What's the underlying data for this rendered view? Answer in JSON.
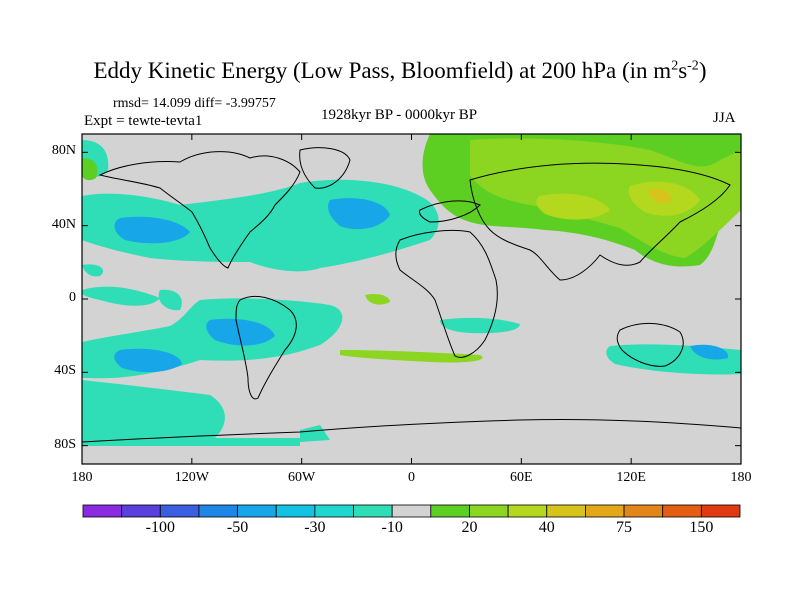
{
  "title": {
    "main": "Eddy Kinetic Energy (Low Pass, Bloomfield) at 200 hPa (in m",
    "sup1": "2",
    "mid": "s",
    "sup2": "-2",
    "end": ")"
  },
  "stats": "rmsd= 14.099 diff= -3.99757",
  "expt": "Expt = tewte-tevta1",
  "period": "1928kyr BP - 0000kyr BP",
  "season": "JJA",
  "map": {
    "lon_range": [
      -180,
      180
    ],
    "lat_range": [
      -90,
      90
    ],
    "lat_ticks": [
      {
        "value": 80,
        "label": "80N"
      },
      {
        "value": 40,
        "label": "40N"
      },
      {
        "value": 0,
        "label": "0"
      },
      {
        "value": -40,
        "label": "40S"
      },
      {
        "value": -80,
        "label": "80S"
      }
    ],
    "lon_ticks": [
      {
        "value": -180,
        "label": "180"
      },
      {
        "value": -120,
        "label": "120W"
      },
      {
        "value": -60,
        "label": "60W"
      },
      {
        "value": 0,
        "label": "0"
      },
      {
        "value": 60,
        "label": "60E"
      },
      {
        "value": 120,
        "label": "120E"
      },
      {
        "value": 180,
        "label": "180"
      }
    ],
    "background_color": "#d3d3d3"
  },
  "colorbar": {
    "colors": [
      "#8a2be2",
      "#5b3fdc",
      "#3a5fe0",
      "#1e86e6",
      "#17a7e8",
      "#14c3e3",
      "#20d6d0",
      "#2fdeb6",
      "#d3d3d3",
      "#5ccf22",
      "#8cd622",
      "#b4d81e",
      "#d6c41a",
      "#e2a81a",
      "#e2861a",
      "#e35e14",
      "#e23a10"
    ],
    "labels": [
      {
        "text": "-100",
        "index": 2
      },
      {
        "text": "-50",
        "index": 4
      },
      {
        "text": "-30",
        "index": 6
      },
      {
        "text": "-10",
        "index": 8
      },
      {
        "text": "20",
        "index": 10
      },
      {
        "text": "40",
        "index": 12
      },
      {
        "text": "75",
        "index": 14
      },
      {
        "text": "150",
        "index": 16
      }
    ]
  }
}
